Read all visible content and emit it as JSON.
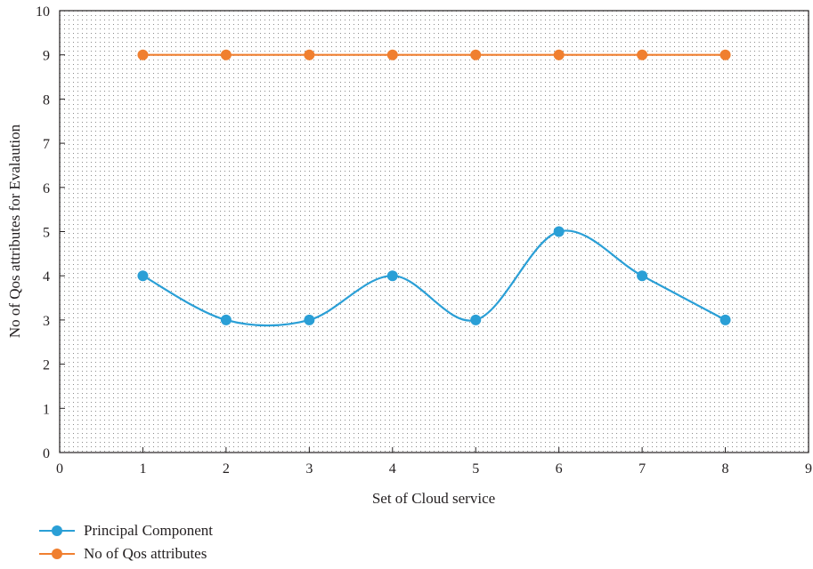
{
  "chart_data": {
    "type": "line",
    "title": "",
    "xlabel": "Set of Cloud service",
    "ylabel": "No of Qos attributes for Evalaution",
    "xlim": [
      0,
      9
    ],
    "ylim": [
      0,
      10
    ],
    "xticks": [
      "0",
      "1",
      "2",
      "3",
      "4",
      "5",
      "6",
      "7",
      "8",
      "9"
    ],
    "yticks": [
      "0",
      "1",
      "2",
      "3",
      "4",
      "5",
      "6",
      "7",
      "8",
      "9",
      "10"
    ],
    "grid": "dotted",
    "legend_position": "bottom-left",
    "series": [
      {
        "name": "Principal Component",
        "color": "#2a9fd6",
        "smooth": true,
        "x": [
          1,
          2,
          3,
          4,
          5,
          6,
          7,
          8
        ],
        "y": [
          4,
          3,
          3,
          4,
          3,
          5,
          4,
          3
        ]
      },
      {
        "name": "No of Qos attributes",
        "color": "#f07f2f",
        "smooth": false,
        "x": [
          1,
          2,
          3,
          4,
          5,
          6,
          7,
          8
        ],
        "y": [
          9,
          9,
          9,
          9,
          9,
          9,
          9,
          9
        ]
      }
    ]
  }
}
